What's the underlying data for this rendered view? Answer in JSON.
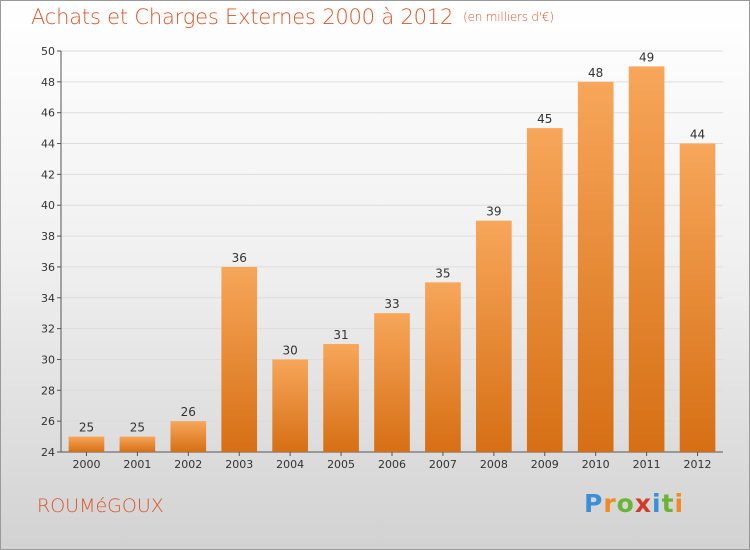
{
  "header": {
    "title": "Achats et Charges Externes 2000 à 2012",
    "unit": "(en milliers d'€)"
  },
  "footer": {
    "place": "ROUMéGOUX",
    "brand_letters": [
      "P",
      "r",
      "o",
      "x",
      "i",
      "t",
      "i"
    ]
  },
  "colors": {
    "title": "#d9562c",
    "bar_top": "#f7a65a",
    "bar_bottom": "#d66f14",
    "grid": "#dddddd",
    "axis": "#555555"
  },
  "chart_data": {
    "type": "bar",
    "title": "Achats et Charges Externes 2000 à 2012",
    "subtitle": "(en milliers d'€)",
    "xlabel": "",
    "ylabel": "",
    "categories": [
      "2000",
      "2001",
      "2002",
      "2003",
      "2004",
      "2005",
      "2006",
      "2007",
      "2008",
      "2009",
      "2010",
      "2011",
      "2012"
    ],
    "values": [
      25,
      25,
      26,
      36,
      30,
      31,
      33,
      35,
      39,
      45,
      48,
      49,
      44
    ],
    "ylim": [
      24,
      50
    ],
    "yticks": [
      24,
      26,
      28,
      30,
      32,
      34,
      36,
      38,
      40,
      42,
      44,
      46,
      48,
      50
    ],
    "grid": true,
    "data_labels": true
  }
}
